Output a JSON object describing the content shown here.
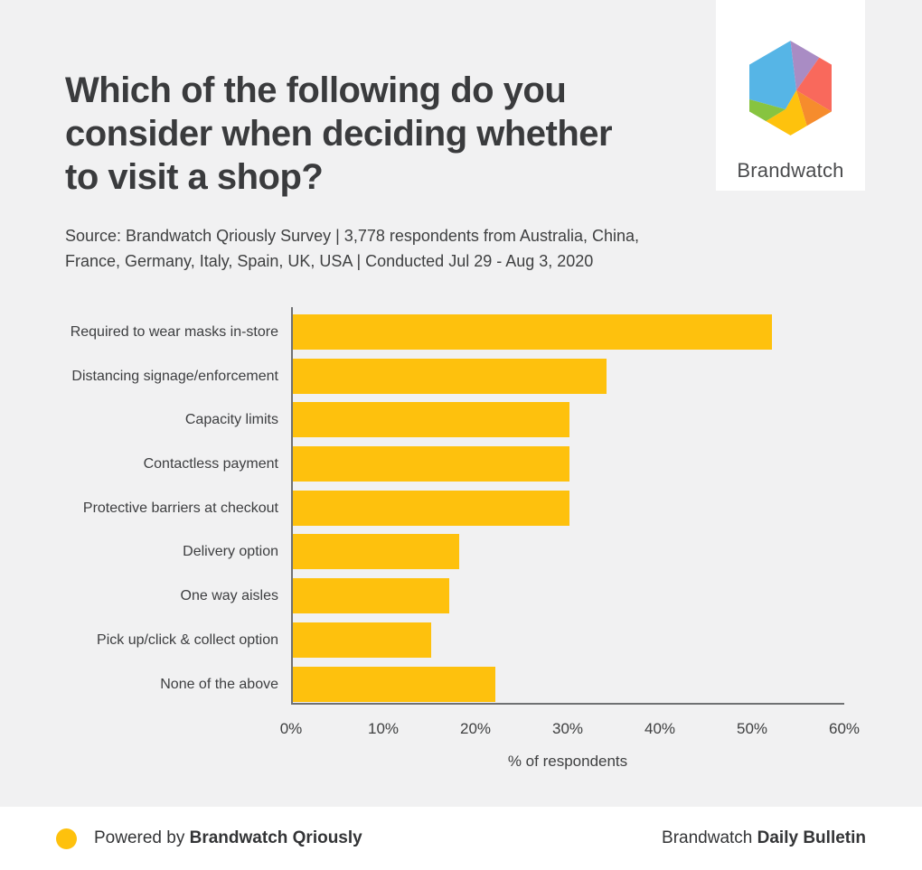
{
  "header": {
    "title": "Which of the following do you consider when deciding whether to visit a shop?",
    "source": "Source: Brandwatch Qriously Survey | 3,778 respondents from Australia, China, France, Germany, Italy, Spain, UK, USA | Conducted Jul 29 - Aug 3, 2020"
  },
  "logo": {
    "brand_name": "Brandwatch",
    "colors": {
      "blue": "#56b5e6",
      "purple": "#a98cc4",
      "red": "#f9695c",
      "orange": "#f68c2d",
      "yellow": "#fec20d",
      "green": "#87c440"
    }
  },
  "chart_data": {
    "type": "bar",
    "orientation": "horizontal",
    "title": "Which of the following do you consider when deciding whether to visit a shop?",
    "categories": [
      "Required to wear masks in-store",
      "Distancing signage/enforcement",
      "Capacity limits",
      "Contactless payment",
      "Protective barriers at checkout",
      "Delivery option",
      "One way aisles",
      "Pick up/click & collect option",
      "None of the above"
    ],
    "values": [
      52,
      34,
      30,
      30,
      30,
      18,
      17,
      15,
      22
    ],
    "xlabel": "% of respondents",
    "ylabel": "",
    "xlim": [
      0,
      60
    ],
    "x_ticks": [
      "0%",
      "10%",
      "20%",
      "30%",
      "40%",
      "50%",
      "60%"
    ],
    "bar_color": "#fec10d",
    "grid": false,
    "legend": false
  },
  "footer": {
    "powered_by_prefix": "Powered by ",
    "powered_by_brand": "Brandwatch Qriously",
    "right_prefix": "Brandwatch ",
    "right_bold": "Daily Bulletin",
    "dot_color": "#fec10d"
  }
}
